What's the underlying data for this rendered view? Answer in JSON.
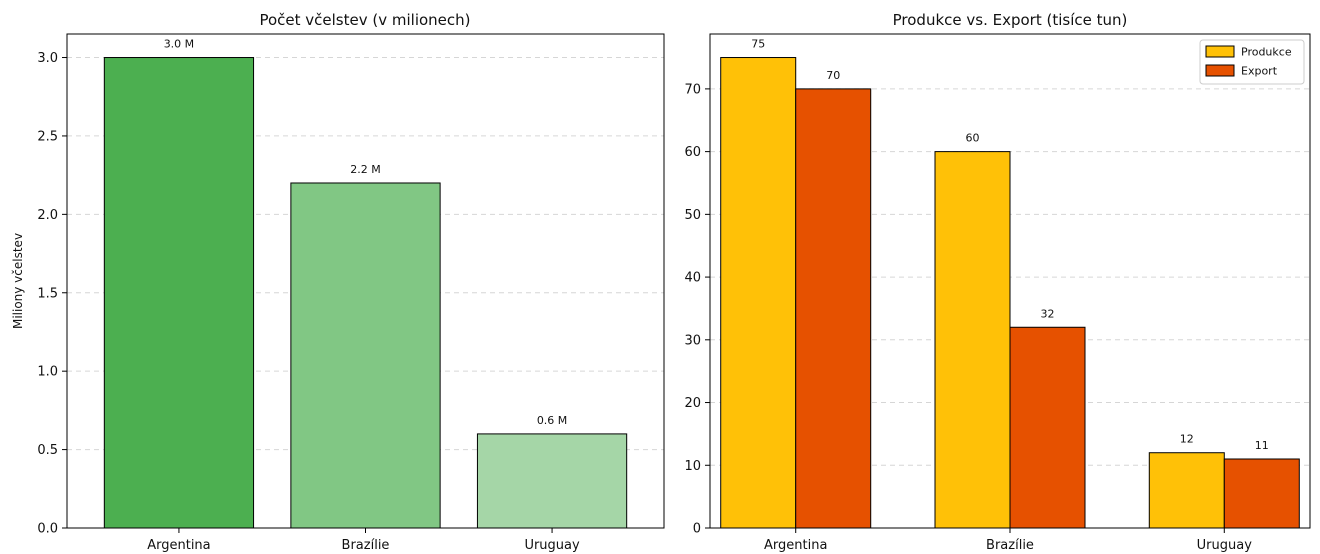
{
  "chart_data": [
    {
      "type": "bar",
      "title": "Počet včelstev (v milionech)",
      "xlabel": "",
      "ylabel": "Miliony včelstev",
      "categories": [
        "Argentina",
        "Brazílie",
        "Uruguay"
      ],
      "values": [
        3.0,
        2.2,
        0.6
      ],
      "data_labels": [
        "3.0 M",
        "2.2 M",
        "0.6 M"
      ],
      "colors": [
        "#4caf50",
        "#81c784",
        "#a5d6a7"
      ],
      "ylim": [
        0,
        3.15
      ],
      "yticks": [
        0.0,
        0.5,
        1.0,
        1.5,
        2.0,
        2.5,
        3.0
      ],
      "ytick_labels": [
        "0.0",
        "0.5",
        "1.0",
        "1.5",
        "2.0",
        "2.5",
        "3.0"
      ],
      "grid": true
    },
    {
      "type": "bar",
      "title": "Produkce vs. Export (tisíce tun)",
      "xlabel": "",
      "ylabel": "",
      "categories": [
        "Argentina",
        "Brazílie",
        "Uruguay"
      ],
      "series": [
        {
          "name": "Produkce",
          "values": [
            75,
            60,
            12
          ],
          "data_labels": [
            "75",
            "60",
            "12"
          ],
          "color": "#ffc107"
        },
        {
          "name": "Export",
          "values": [
            70,
            32,
            11
          ],
          "data_labels": [
            "70",
            "32",
            "11"
          ],
          "color": "#e65100"
        }
      ],
      "ylim": [
        0,
        78.75
      ],
      "yticks": [
        0,
        10,
        20,
        30,
        40,
        50,
        60,
        70
      ],
      "ytick_labels": [
        "0",
        "10",
        "20",
        "30",
        "40",
        "50",
        "60",
        "70"
      ],
      "legend": "top-right",
      "grid": true
    }
  ]
}
